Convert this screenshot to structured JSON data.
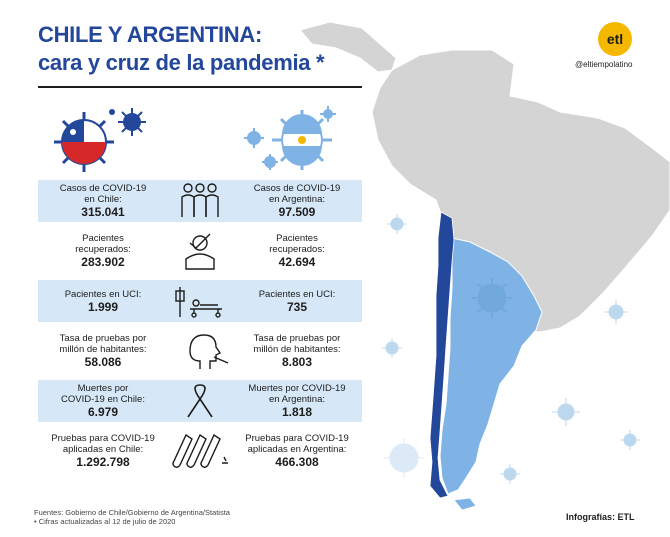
{
  "header": {
    "title_line1": "CHILE Y ARGENTINA:",
    "title_line2": "cara y cruz de la pandemia *"
  },
  "brand": {
    "logo_text": "etl",
    "handle": "@eltiempolatino",
    "logo_color": "#f5b800"
  },
  "colors": {
    "chile_map": "#23479b",
    "argentina_map": "#7fb3e6",
    "continent": "#d4d4d4",
    "row_shade": "#d6e7f8",
    "virus": "#a8cdea",
    "title": "#23479b"
  },
  "stats": [
    {
      "chile_label": "Casos de COVID-19\nen Chile:",
      "chile_value": "315.041",
      "icon": "people-icon",
      "argentina_label": "Casos de COVID-19\nen Argentina:",
      "argentina_value": "97.509"
    },
    {
      "chile_label": "Pacientes\nrecuperados:",
      "chile_value": "283.902",
      "icon": "recovered-person-icon",
      "argentina_label": "Pacientes\nrecuperados:",
      "argentina_value": "42.694"
    },
    {
      "chile_label": "Pacientes en UCI:",
      "chile_value": "1.999",
      "icon": "hospital-bed-icon",
      "argentina_label": "Pacientes en UCI:",
      "argentina_value": "735"
    },
    {
      "chile_label": "Tasa de pruebas por\nmillón de habitantes:",
      "chile_value": "58.086",
      "icon": "swab-test-icon",
      "argentina_label": "Tasa de pruebas por\nmillón de habitantes:",
      "argentina_value": "8.803"
    },
    {
      "chile_label": "Muertes por\nCOVID-19 en Chile:",
      "chile_value": "6.979",
      "icon": "mourning-ribbon-icon",
      "argentina_label": "Muertes por COVID-19\nen Argentina:",
      "argentina_value": "1.818"
    },
    {
      "chile_label": "Pruebas para COVID-19\naplicadas en Chile:",
      "chile_value": "1.292.798",
      "icon": "test-tubes-icon",
      "argentina_label": "Pruebas para COVID-19\naplicadas en Argentina:",
      "argentina_value": "466.308"
    }
  ],
  "footer": {
    "sources": "Fuentes: Gobierno de Chile/Gobierno de Argentina/Statista",
    "note": "• Cifras actualizadas al 12 de julio de 2020",
    "credit": "Infografías: ETL"
  }
}
